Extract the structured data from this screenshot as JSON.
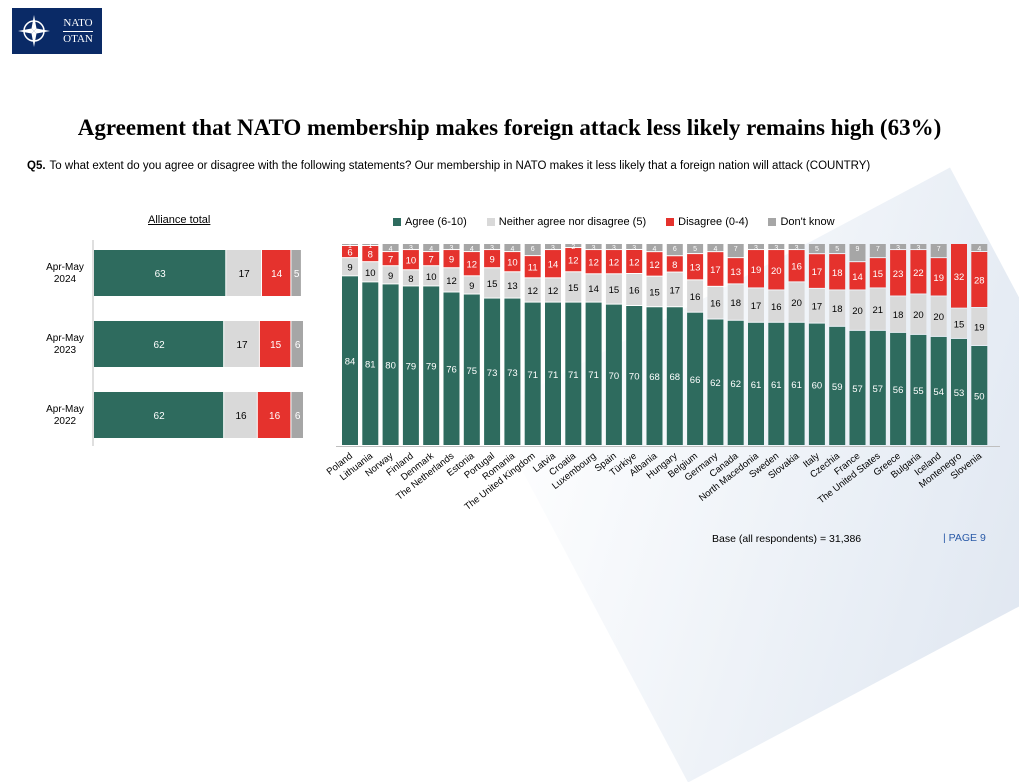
{
  "logo": {
    "line1": "NATO",
    "line2": "OTAN"
  },
  "title": "Agreement that NATO membership makes foreign attack less likely remains high (63%)",
  "question": {
    "label": "Q5.",
    "text": "To what extent do you agree or disagree with the following statements? Our membership in NATO makes it less likely that a foreign nation will attack (COUNTRY)"
  },
  "colors": {
    "agree": "#2e6b5e",
    "neither": "#d9d9d9",
    "disagree": "#e5322d",
    "dontknow": "#a6a6a6"
  },
  "legend": [
    {
      "label": "Agree (6-10)",
      "key": "agree"
    },
    {
      "label": "Neither agree nor disagree (5)",
      "key": "neither"
    },
    {
      "label": "Disagree (0-4)",
      "key": "disagree"
    },
    {
      "label": "Don't know",
      "key": "dontknow"
    }
  ],
  "chart_data": [
    {
      "type": "bar",
      "orientation": "horizontal-stacked",
      "title": "Alliance total",
      "categories": [
        "Apr-May 2024",
        "Apr-May 2023",
        "Apr-May 2022"
      ],
      "series": [
        {
          "name": "Agree (6-10)",
          "values": [
            63,
            62,
            62
          ]
        },
        {
          "name": "Neither agree nor disagree (5)",
          "values": [
            17,
            17,
            16
          ]
        },
        {
          "name": "Disagree (0-4)",
          "values": [
            14,
            15,
            16
          ]
        },
        {
          "name": "Don't know",
          "values": [
            5,
            6,
            6
          ]
        }
      ]
    },
    {
      "type": "bar",
      "orientation": "vertical-stacked-100",
      "categories": [
        "Poland",
        "Lithuania",
        "Norway",
        "Finland",
        "Denmark",
        "The Netherlands",
        "Estonia",
        "Portugal",
        "Romania",
        "The United Kingdom",
        "Latvia",
        "Croatia",
        "Luxembourg",
        "Spain",
        "Türkiye",
        "Albania",
        "Hungary",
        "Belgium",
        "Germany",
        "Canada",
        "North Macedonia",
        "Sweden",
        "Slovakia",
        "Italy",
        "Czechia",
        "France",
        "The United States",
        "Greece",
        "Bulgaria",
        "Iceland",
        "Montenegro",
        "Slovenia"
      ],
      "series": [
        {
          "name": "Agree (6-10)",
          "values": [
            84,
            81,
            80,
            79,
            79,
            76,
            75,
            73,
            73,
            71,
            71,
            71,
            71,
            70,
            70,
            68,
            68,
            66,
            62,
            62,
            61,
            61,
            61,
            60,
            59,
            57,
            57,
            56,
            55,
            54,
            53,
            50
          ]
        },
        {
          "name": "Neither agree nor disagree (5)",
          "values": [
            9,
            10,
            9,
            8,
            10,
            12,
            9,
            15,
            13,
            12,
            12,
            15,
            14,
            15,
            16,
            15,
            17,
            16,
            16,
            18,
            17,
            16,
            20,
            17,
            18,
            20,
            21,
            18,
            20,
            20,
            15,
            19
          ]
        },
        {
          "name": "Disagree (0-4)",
          "values": [
            6,
            8,
            7,
            10,
            7,
            9,
            12,
            9,
            10,
            11,
            14,
            12,
            12,
            12,
            12,
            12,
            8,
            13,
            17,
            13,
            19,
            20,
            16,
            17,
            18,
            14,
            15,
            23,
            22,
            19,
            32,
            28
          ]
        },
        {
          "name": "Don't know",
          "values": [
            1,
            1,
            4,
            3,
            4,
            3,
            4,
            3,
            4,
            6,
            3,
            2,
            3,
            3,
            3,
            4,
            6,
            5,
            4,
            7,
            3,
            3,
            3,
            5,
            5,
            9,
            7,
            3,
            3,
            7,
            0,
            4
          ]
        }
      ]
    }
  ],
  "footer": {
    "base": "Base (all respondents) = 31,386",
    "page": "| PAGE 9"
  }
}
